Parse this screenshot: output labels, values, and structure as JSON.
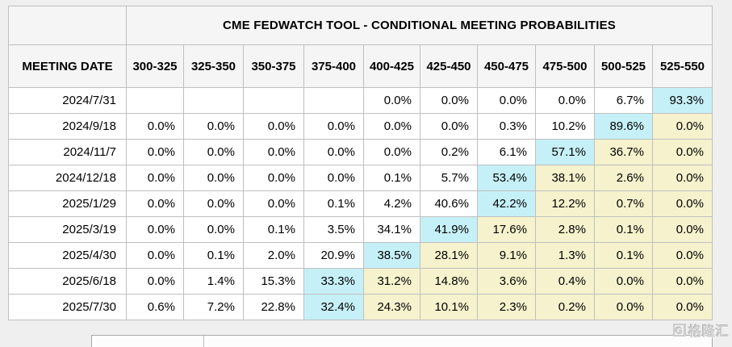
{
  "table": {
    "title": "CME FEDWATCH TOOL - CONDITIONAL MEETING PROBABILITIES",
    "date_header": "MEETING DATE",
    "rate_headers": [
      "300-325",
      "325-350",
      "350-375",
      "375-400",
      "400-425",
      "425-450",
      "450-475",
      "475-500",
      "500-525",
      "525-550"
    ],
    "rows": [
      {
        "date": "2024/7/31",
        "cells": [
          {
            "value": "",
            "bg": "white"
          },
          {
            "value": "",
            "bg": "white"
          },
          {
            "value": "",
            "bg": "white"
          },
          {
            "value": "",
            "bg": "white"
          },
          {
            "value": "0.0%",
            "bg": "white"
          },
          {
            "value": "0.0%",
            "bg": "white"
          },
          {
            "value": "0.0%",
            "bg": "white"
          },
          {
            "value": "0.0%",
            "bg": "white"
          },
          {
            "value": "6.7%",
            "bg": "white"
          },
          {
            "value": "93.3%",
            "bg": "cyan"
          }
        ]
      },
      {
        "date": "2024/9/18",
        "cells": [
          {
            "value": "0.0%",
            "bg": "white"
          },
          {
            "value": "0.0%",
            "bg": "white"
          },
          {
            "value": "0.0%",
            "bg": "white"
          },
          {
            "value": "0.0%",
            "bg": "white"
          },
          {
            "value": "0.0%",
            "bg": "white"
          },
          {
            "value": "0.0%",
            "bg": "white"
          },
          {
            "value": "0.3%",
            "bg": "white"
          },
          {
            "value": "10.2%",
            "bg": "white"
          },
          {
            "value": "89.6%",
            "bg": "cyan"
          },
          {
            "value": "0.0%",
            "bg": "yellow"
          }
        ]
      },
      {
        "date": "2024/11/7",
        "cells": [
          {
            "value": "0.0%",
            "bg": "white"
          },
          {
            "value": "0.0%",
            "bg": "white"
          },
          {
            "value": "0.0%",
            "bg": "white"
          },
          {
            "value": "0.0%",
            "bg": "white"
          },
          {
            "value": "0.0%",
            "bg": "white"
          },
          {
            "value": "0.2%",
            "bg": "white"
          },
          {
            "value": "6.1%",
            "bg": "white"
          },
          {
            "value": "57.1%",
            "bg": "cyan"
          },
          {
            "value": "36.7%",
            "bg": "yellow"
          },
          {
            "value": "0.0%",
            "bg": "yellow"
          }
        ]
      },
      {
        "date": "2024/12/18",
        "cells": [
          {
            "value": "0.0%",
            "bg": "white"
          },
          {
            "value": "0.0%",
            "bg": "white"
          },
          {
            "value": "0.0%",
            "bg": "white"
          },
          {
            "value": "0.0%",
            "bg": "white"
          },
          {
            "value": "0.1%",
            "bg": "white"
          },
          {
            "value": "5.7%",
            "bg": "white"
          },
          {
            "value": "53.4%",
            "bg": "cyan"
          },
          {
            "value": "38.1%",
            "bg": "yellow"
          },
          {
            "value": "2.6%",
            "bg": "yellow"
          },
          {
            "value": "0.0%",
            "bg": "yellow"
          }
        ]
      },
      {
        "date": "2025/1/29",
        "cells": [
          {
            "value": "0.0%",
            "bg": "white"
          },
          {
            "value": "0.0%",
            "bg": "white"
          },
          {
            "value": "0.0%",
            "bg": "white"
          },
          {
            "value": "0.1%",
            "bg": "white"
          },
          {
            "value": "4.2%",
            "bg": "white"
          },
          {
            "value": "40.6%",
            "bg": "white"
          },
          {
            "value": "42.2%",
            "bg": "cyan"
          },
          {
            "value": "12.2%",
            "bg": "yellow"
          },
          {
            "value": "0.7%",
            "bg": "yellow"
          },
          {
            "value": "0.0%",
            "bg": "yellow"
          }
        ]
      },
      {
        "date": "2025/3/19",
        "cells": [
          {
            "value": "0.0%",
            "bg": "white"
          },
          {
            "value": "0.0%",
            "bg": "white"
          },
          {
            "value": "0.1%",
            "bg": "white"
          },
          {
            "value": "3.5%",
            "bg": "white"
          },
          {
            "value": "34.1%",
            "bg": "white"
          },
          {
            "value": "41.9%",
            "bg": "cyan"
          },
          {
            "value": "17.6%",
            "bg": "yellow"
          },
          {
            "value": "2.8%",
            "bg": "yellow"
          },
          {
            "value": "0.1%",
            "bg": "yellow"
          },
          {
            "value": "0.0%",
            "bg": "yellow"
          }
        ]
      },
      {
        "date": "2025/4/30",
        "cells": [
          {
            "value": "0.0%",
            "bg": "white"
          },
          {
            "value": "0.1%",
            "bg": "white"
          },
          {
            "value": "2.0%",
            "bg": "white"
          },
          {
            "value": "20.9%",
            "bg": "white"
          },
          {
            "value": "38.5%",
            "bg": "cyan"
          },
          {
            "value": "28.1%",
            "bg": "yellow"
          },
          {
            "value": "9.1%",
            "bg": "yellow"
          },
          {
            "value": "1.3%",
            "bg": "yellow"
          },
          {
            "value": "0.1%",
            "bg": "yellow"
          },
          {
            "value": "0.0%",
            "bg": "yellow"
          }
        ]
      },
      {
        "date": "2025/6/18",
        "cells": [
          {
            "value": "0.0%",
            "bg": "white"
          },
          {
            "value": "1.4%",
            "bg": "white"
          },
          {
            "value": "15.3%",
            "bg": "white"
          },
          {
            "value": "33.3%",
            "bg": "cyan"
          },
          {
            "value": "31.2%",
            "bg": "yellow"
          },
          {
            "value": "14.8%",
            "bg": "yellow"
          },
          {
            "value": "3.6%",
            "bg": "yellow"
          },
          {
            "value": "0.4%",
            "bg": "yellow"
          },
          {
            "value": "0.0%",
            "bg": "yellow"
          },
          {
            "value": "0.0%",
            "bg": "yellow"
          }
        ]
      },
      {
        "date": "2025/7/30",
        "cells": [
          {
            "value": "0.6%",
            "bg": "white"
          },
          {
            "value": "7.2%",
            "bg": "white"
          },
          {
            "value": "22.8%",
            "bg": "white"
          },
          {
            "value": "32.4%",
            "bg": "cyan"
          },
          {
            "value": "24.3%",
            "bg": "yellow"
          },
          {
            "value": "10.1%",
            "bg": "yellow"
          },
          {
            "value": "2.3%",
            "bg": "yellow"
          },
          {
            "value": "0.2%",
            "bg": "yellow"
          },
          {
            "value": "0.0%",
            "bg": "yellow"
          },
          {
            "value": "0.0%",
            "bg": "yellow"
          }
        ]
      }
    ]
  },
  "colors": {
    "highlight_cyan": "#c6f0f7",
    "highlight_yellow": "#f5f2cd"
  },
  "watermark": {
    "logo": "G",
    "text": "格隆汇"
  },
  "chart_data": {
    "type": "table",
    "title": "CME FEDWATCH TOOL - CONDITIONAL MEETING PROBABILITIES",
    "columns": [
      "MEETING DATE",
      "300-325",
      "325-350",
      "350-375",
      "375-400",
      "400-425",
      "425-450",
      "450-475",
      "475-500",
      "500-525",
      "525-550"
    ],
    "unit": "percent",
    "rows": [
      {
        "meeting_date": "2024/7/31",
        "values": [
          null,
          null,
          null,
          null,
          0.0,
          0.0,
          0.0,
          0.0,
          6.7,
          93.3
        ],
        "highlighted_max": 93.3
      },
      {
        "meeting_date": "2024/9/18",
        "values": [
          0.0,
          0.0,
          0.0,
          0.0,
          0.0,
          0.0,
          0.3,
          10.2,
          89.6,
          0.0
        ],
        "highlighted_max": 89.6
      },
      {
        "meeting_date": "2024/11/7",
        "values": [
          0.0,
          0.0,
          0.0,
          0.0,
          0.0,
          0.2,
          6.1,
          57.1,
          36.7,
          0.0
        ],
        "highlighted_max": 57.1
      },
      {
        "meeting_date": "2024/12/18",
        "values": [
          0.0,
          0.0,
          0.0,
          0.0,
          0.1,
          5.7,
          53.4,
          38.1,
          2.6,
          0.0
        ],
        "highlighted_max": 53.4
      },
      {
        "meeting_date": "2025/1/29",
        "values": [
          0.0,
          0.0,
          0.0,
          0.1,
          4.2,
          40.6,
          42.2,
          12.2,
          0.7,
          0.0
        ],
        "highlighted_max": 42.2
      },
      {
        "meeting_date": "2025/3/19",
        "values": [
          0.0,
          0.0,
          0.1,
          3.5,
          34.1,
          41.9,
          17.6,
          2.8,
          0.1,
          0.0
        ],
        "highlighted_max": 41.9
      },
      {
        "meeting_date": "2025/4/30",
        "values": [
          0.0,
          0.1,
          2.0,
          20.9,
          38.5,
          28.1,
          9.1,
          1.3,
          0.1,
          0.0
        ],
        "highlighted_max": 38.5
      },
      {
        "meeting_date": "2025/6/18",
        "values": [
          0.0,
          1.4,
          15.3,
          33.3,
          31.2,
          14.8,
          3.6,
          0.4,
          0.0,
          0.0
        ],
        "highlighted_max": 33.3
      },
      {
        "meeting_date": "2025/7/30",
        "values": [
          0.6,
          7.2,
          22.8,
          32.4,
          24.3,
          10.1,
          2.3,
          0.2,
          0.0,
          0.0
        ],
        "highlighted_max": 32.4
      }
    ]
  }
}
